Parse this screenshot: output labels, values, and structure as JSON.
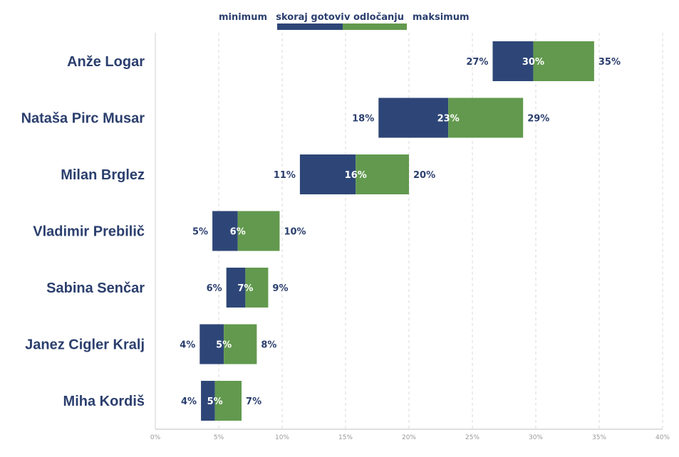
{
  "chart_data": {
    "type": "bar",
    "orientation": "horizontal",
    "stacked": true,
    "title": "",
    "xlabel": "",
    "ylabel": "",
    "xlim": [
      0,
      40
    ],
    "x_ticks": [
      "0%",
      "5%",
      "10%",
      "15%",
      "20%",
      "25%",
      "30%",
      "35%",
      "40%"
    ],
    "grid": true,
    "legend": {
      "position": "top",
      "labels": {
        "minimum": "minimum",
        "skoraj": "skoraj gotovi",
        "odlocanje": "v odločanju",
        "maksimum": "maksimum"
      }
    },
    "colors": {
      "skoraj": "#2e4677",
      "odlocanje": "#62994e",
      "text": "#2b3f6e",
      "axis": "#999999",
      "grid": "#d9d9d9"
    },
    "categories": [
      "Anže Logar",
      "Nataša Pirc Musar",
      "Milan Brglez",
      "Vladimir Prebilič",
      "Sabina Senčar",
      "Janez Cigler Kralj",
      "Miha Kordiš"
    ],
    "minimum": [
      26.6,
      17.6,
      11.4,
      4.5,
      5.6,
      3.5,
      3.6
    ],
    "skoraj_end": [
      29.8,
      23.1,
      15.8,
      6.5,
      7.1,
      5.4,
      4.7
    ],
    "maksimum": [
      34.6,
      29.0,
      20.0,
      9.8,
      8.9,
      8.0,
      6.8
    ],
    "minimum_labels": [
      "27%",
      "18%",
      "11%",
      "5%",
      "6%",
      "4%",
      "4%"
    ],
    "skoraj_labels": [
      "30%",
      "23%",
      "16%",
      "6%",
      "7%",
      "5%",
      "5%"
    ],
    "maksimum_labels": [
      "35%",
      "29%",
      "20%",
      "10%",
      "9%",
      "8%",
      "7%"
    ]
  }
}
